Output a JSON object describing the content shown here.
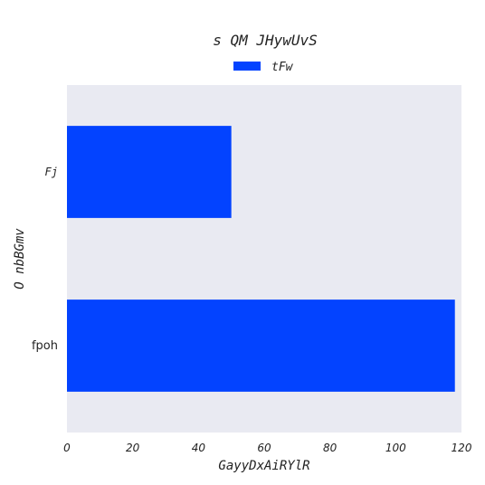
{
  "chart_data": {
    "type": "bar",
    "orientation": "horizontal",
    "title": "s QM JHywUvS",
    "xlabel": "GayyDxAiRYlR",
    "ylabel": "O nbBGmv",
    "categories": [
      "Fj",
      "fpoh"
    ],
    "series": [
      {
        "name": "tFw",
        "values": [
          50,
          118
        ],
        "color": "#0343ff"
      }
    ],
    "xlim": [
      0,
      120
    ],
    "xticks": [
      0,
      20,
      40,
      60,
      80,
      100,
      120
    ],
    "legend": "top-center",
    "grid": false,
    "background": "#e9eaf2"
  }
}
